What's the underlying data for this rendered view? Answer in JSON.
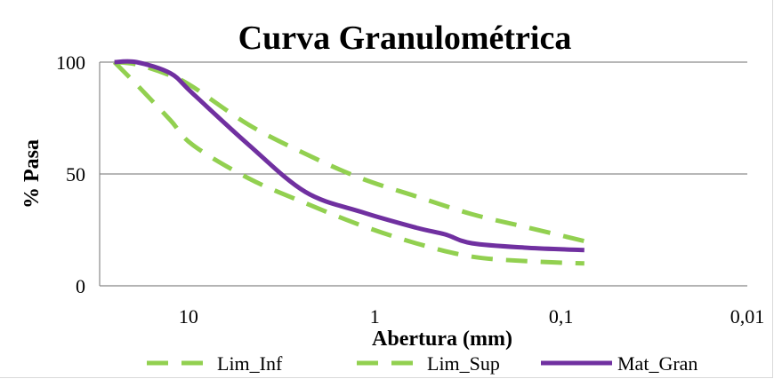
{
  "chart_data": {
    "type": "line",
    "title": "Curva Granulométrica",
    "xlabel": "Abertura (mm)",
    "ylabel": "% Pasa",
    "x_scale": "log",
    "x_reversed": true,
    "xlim": [
      30,
      0.01
    ],
    "ylim": [
      0,
      100
    ],
    "y_ticks": [
      0,
      50,
      100
    ],
    "y_tick_labels": [
      "0",
      "50",
      "100"
    ],
    "x_ticks": [
      10,
      1,
      0.1,
      0.01
    ],
    "x_tick_labels": [
      "10",
      "1",
      "0,1",
      "0,01"
    ],
    "grid": "horizontal",
    "legend_position": "bottom",
    "series": [
      {
        "name": "Lim_Inf",
        "style": "dashed",
        "color": "#92d050",
        "x": [
          25,
          19,
          12.5,
          9.5,
          4.75,
          2.36,
          1.18,
          0.6,
          0.3,
          0.15,
          0.075
        ],
        "y": [
          100,
          90,
          74,
          63,
          48,
          37,
          27,
          19,
          13,
          11,
          10
        ]
      },
      {
        "name": "Lim_Sup",
        "style": "dashed",
        "color": "#92d050",
        "x": [
          25,
          19,
          12.5,
          9.5,
          4.75,
          2.36,
          1.18,
          0.6,
          0.3,
          0.15,
          0.075
        ],
        "y": [
          100,
          99,
          94,
          89,
          72,
          59,
          48,
          40,
          32,
          26,
          20
        ]
      },
      {
        "name": "Mat_Gran",
        "style": "solid",
        "color": "#7030a0",
        "x": [
          25,
          19,
          12.5,
          9.5,
          4.75,
          2.36,
          1.18,
          0.6,
          0.42,
          0.3,
          0.15,
          0.075
        ],
        "y": [
          100,
          100,
          95,
          86,
          63,
          42,
          33,
          26,
          23,
          19,
          17,
          16
        ]
      }
    ]
  }
}
